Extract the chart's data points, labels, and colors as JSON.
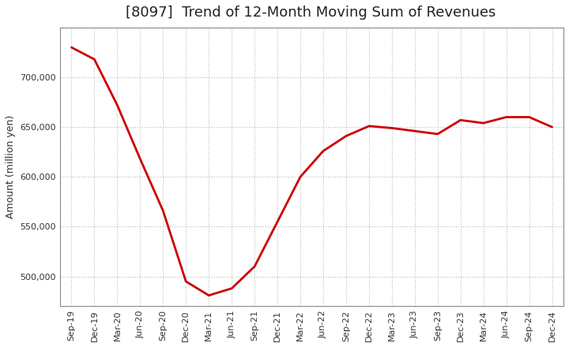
{
  "title": "[8097]  Trend of 12-Month Moving Sum of Revenues",
  "ylabel": "Amount (million yen)",
  "line_color": "#cc0000",
  "background_color": "#ffffff",
  "plot_bg_color": "#ffffff",
  "grid_color": "#bbbbbb",
  "x_labels": [
    "Sep-19",
    "Dec-19",
    "Mar-20",
    "Jun-20",
    "Sep-20",
    "Dec-20",
    "Mar-21",
    "Jun-21",
    "Sep-21",
    "Dec-21",
    "Mar-22",
    "Jun-22",
    "Sep-22",
    "Dec-22",
    "Mar-23",
    "Jun-23",
    "Sep-23",
    "Dec-23",
    "Mar-24",
    "Jun-24",
    "Sep-24",
    "Dec-24"
  ],
  "y_values": [
    730000,
    718000,
    672000,
    618000,
    566000,
    495000,
    481000,
    488000,
    510000,
    555000,
    600000,
    626000,
    641000,
    651000,
    649000,
    646000,
    643000,
    657000,
    654000,
    660000,
    660000,
    650000
  ],
  "ylim": [
    470000,
    750000
  ],
  "yticks": [
    500000,
    550000,
    600000,
    650000,
    700000
  ],
  "line_width": 2.0,
  "title_fontsize": 13,
  "axis_fontsize": 9,
  "tick_fontsize": 8
}
